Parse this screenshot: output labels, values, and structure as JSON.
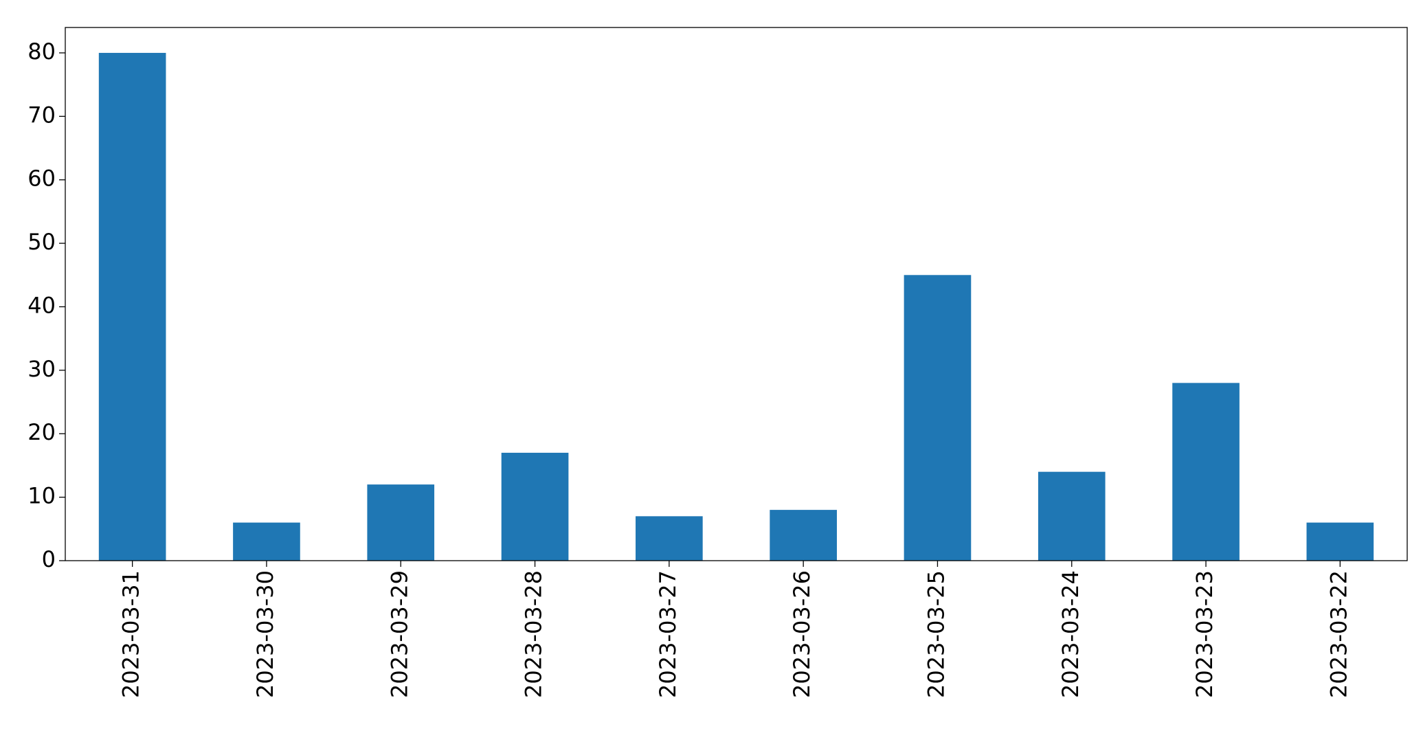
{
  "chart_data": {
    "type": "bar",
    "categories": [
      "2023-03-31",
      "2023-03-30",
      "2023-03-29",
      "2023-03-28",
      "2023-03-27",
      "2023-03-26",
      "2023-03-25",
      "2023-03-24",
      "2023-03-23",
      "2023-03-22"
    ],
    "values": [
      80,
      6,
      12,
      17,
      7,
      8,
      45,
      14,
      28,
      6
    ],
    "color": "#1f77b4",
    "ylim": [
      0,
      84
    ],
    "yticks": [
      0,
      10,
      20,
      30,
      40,
      50,
      60,
      70,
      80
    ],
    "grid": false
  }
}
